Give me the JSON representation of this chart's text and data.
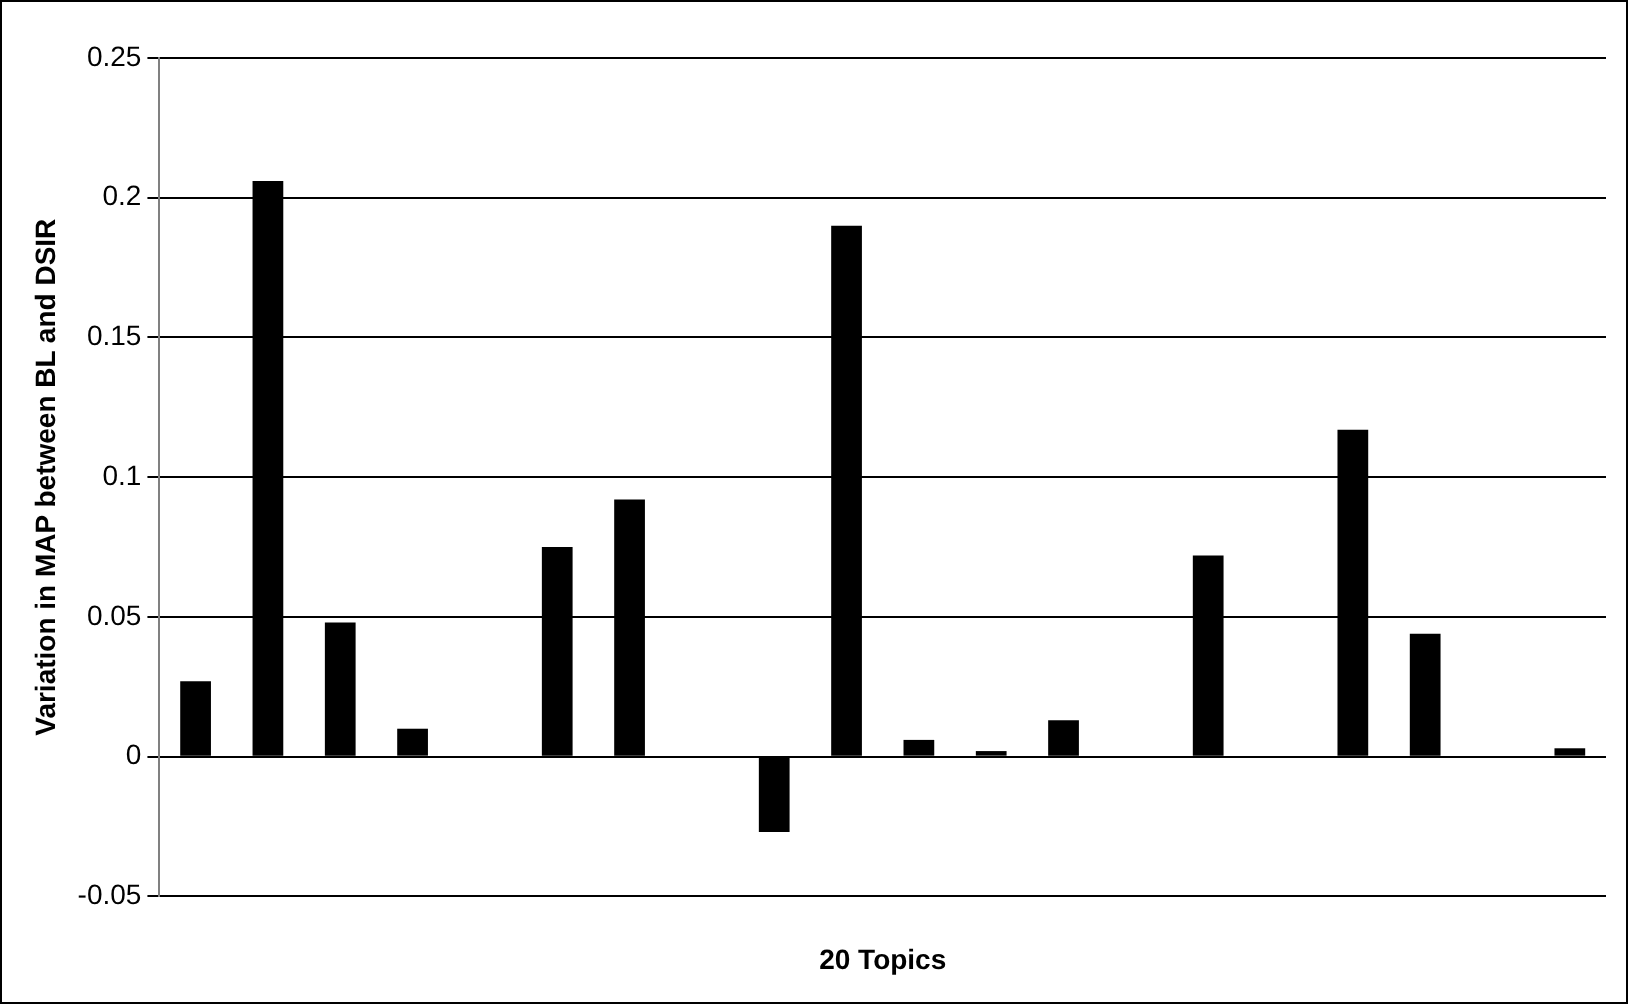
{
  "chart_data": {
    "type": "bar",
    "xlabel": "20 Topics",
    "ylabel": "Variation in MAP between BL and DSIR",
    "categories": [
      null,
      null,
      null,
      null,
      null,
      null,
      null,
      null,
      null,
      null,
      null,
      null,
      null,
      null,
      null,
      null,
      null,
      null,
      null,
      null
    ],
    "values": [
      0.027,
      0.206,
      0.048,
      0.01,
      0,
      0.075,
      0.092,
      0,
      -0.027,
      0.19,
      0.006,
      0.002,
      0.013,
      0,
      0.072,
      0,
      0.117,
      0.044,
      0,
      0.003
    ],
    "color": "#000000",
    "ylim": [
      -0.05,
      0.25
    ],
    "yticks": [
      -0.05,
      0,
      0.05,
      0.1,
      0.15,
      0.2,
      0.25
    ],
    "grid": "y"
  }
}
